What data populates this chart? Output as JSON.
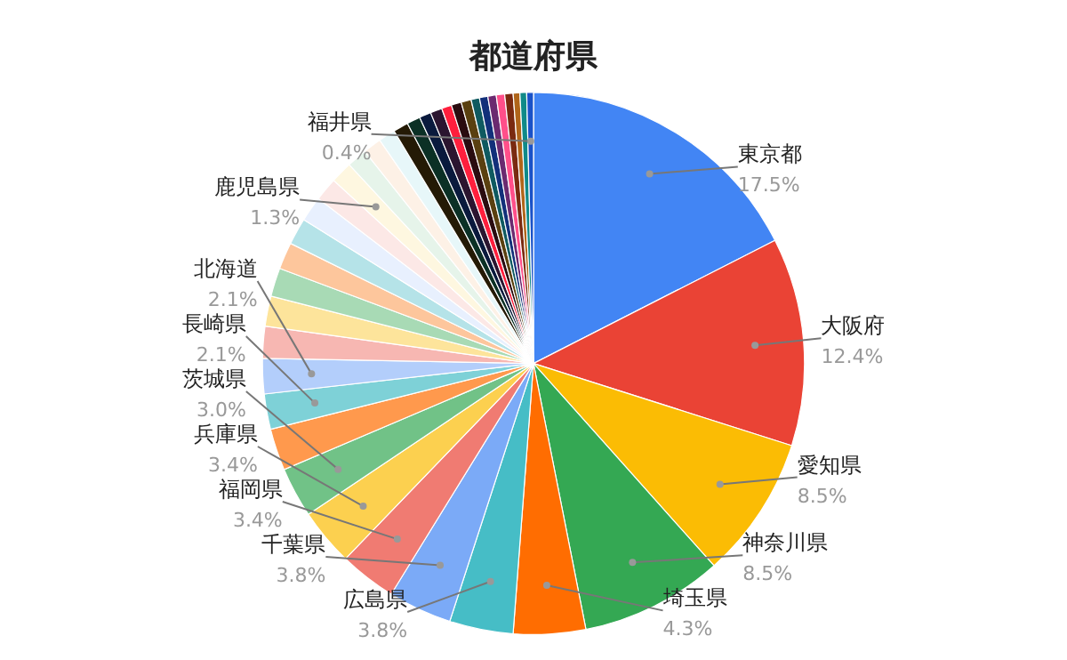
{
  "chart_data": {
    "type": "pie",
    "title": "都道府県",
    "categories": [
      "東京都",
      "大阪府",
      "愛知県",
      "神奈川県",
      "埼玉県",
      "広島県",
      "千葉県",
      "福岡県",
      "兵庫県",
      "茨城県",
      null,
      "長崎県",
      "北海道",
      null,
      null,
      null,
      null,
      null,
      null,
      null,
      "鹿児島県",
      null,
      null,
      null,
      null,
      null,
      null,
      null,
      null,
      null,
      null,
      null,
      null,
      null,
      null,
      null,
      null,
      null,
      "福井県"
    ],
    "values": [
      17.5,
      12.4,
      8.5,
      8.5,
      4.3,
      3.8,
      3.8,
      3.4,
      3.4,
      3.0,
      2.5,
      2.1,
      2.1,
      1.9,
      1.8,
      1.7,
      1.6,
      1.6,
      1.5,
      1.4,
      1.3,
      1.2,
      1.1,
      1.0,
      0.9,
      0.8,
      0.7,
      0.7,
      0.6,
      0.6,
      0.6,
      0.5,
      0.5,
      0.5,
      0.5,
      0.5,
      0.4,
      0.4,
      0.4
    ],
    "value_labels": [
      "17.5%",
      "12.4%",
      "8.5%",
      "8.5%",
      "4.3%",
      "3.8%",
      "3.8%",
      "3.4%",
      "3.4%",
      "3.0%",
      null,
      "2.1%",
      "2.1%",
      null,
      null,
      null,
      null,
      null,
      null,
      null,
      "1.3%",
      null,
      null,
      null,
      null,
      null,
      null,
      null,
      null,
      null,
      null,
      null,
      null,
      null,
      null,
      null,
      null,
      null,
      "0.4%"
    ],
    "colors": [
      "#4285f4",
      "#ea4335",
      "#fbbc04",
      "#34a853",
      "#ff6d01",
      "#46bdc6",
      "#7baaf7",
      "#f07b72",
      "#fcd04f",
      "#71c287",
      "#ff994d",
      "#7ed1d7",
      "#b3cefb",
      "#f7b7b2",
      "#fde49b",
      "#a8dab5",
      "#fdc69c",
      "#b5e3e8",
      "#e8f0fe",
      "#fce8e6",
      "#fef7e0",
      "#e6f4ea",
      "#fdf1e6",
      "#e7f7f9",
      "#241a05",
      "#0b3025",
      "#0a1a3d",
      "#2b1530",
      "#ff1f3d",
      "#2a0c10",
      "#5a4010",
      "#0f5a60",
      "#12307a",
      "#6b2a70",
      "#ff4f8a",
      "#7a2a10",
      "#b0651a",
      "#108a88",
      "#1a52c8"
    ],
    "legend": false
  }
}
